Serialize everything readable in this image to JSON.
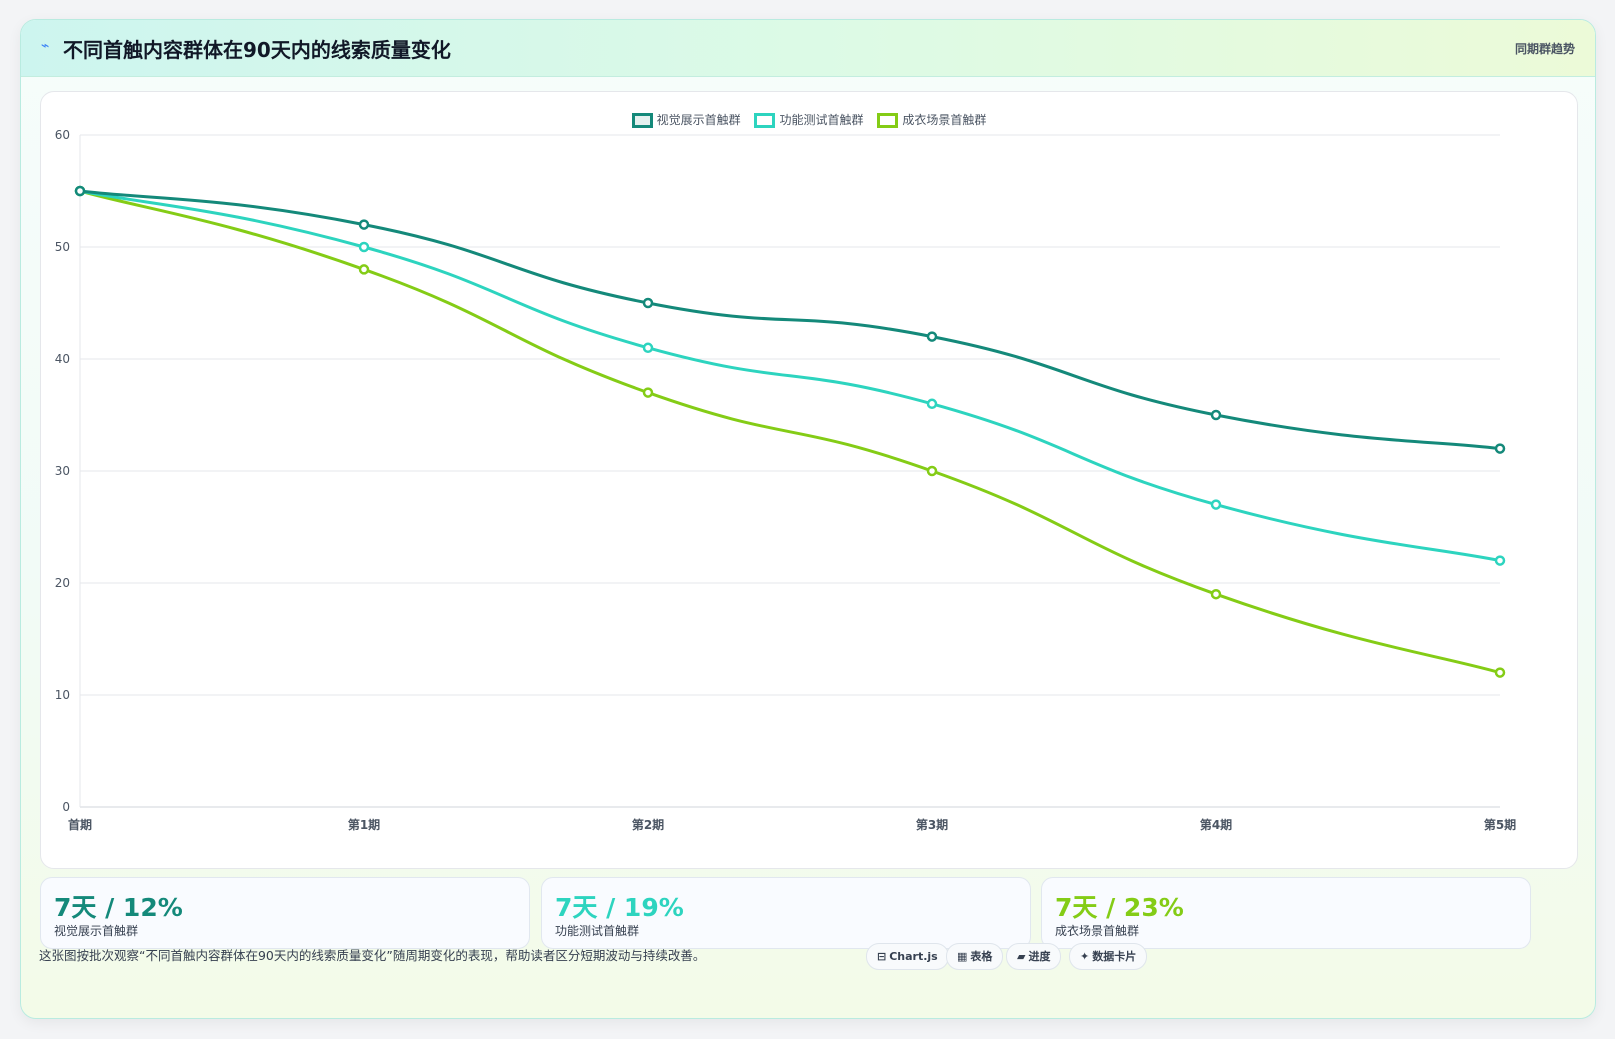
{
  "header": {
    "icon": "lightning-icon",
    "title": "不同首触内容群体在90天内的线索质量变化",
    "badge": "同期群趋势"
  },
  "chart_data": {
    "type": "line",
    "categories": [
      "首期",
      "第1期",
      "第2期",
      "第3期",
      "第4期",
      "第5期"
    ],
    "series": [
      {
        "name": "视觉展示首触群",
        "color": "#14897a",
        "values": [
          55,
          52,
          45,
          42,
          35,
          32
        ]
      },
      {
        "name": "功能测试首触群",
        "color": "#2dd4bf",
        "values": [
          55,
          50,
          41,
          36,
          27,
          22
        ]
      },
      {
        "name": "成衣场景首触群",
        "color": "#84cc16",
        "values": [
          55,
          48,
          37,
          30,
          19,
          12
        ]
      }
    ],
    "yticks": [
      0,
      10,
      20,
      30,
      40,
      50,
      60
    ],
    "ylim": [
      0,
      60
    ],
    "grid": true,
    "legend_position": "top-center",
    "curve": "smooth"
  },
  "stats": [
    {
      "value": "7天 / 12%",
      "label": "视觉展示首触群",
      "color": "#14897a"
    },
    {
      "value": "7天 / 19%",
      "label": "功能测试首触群",
      "color": "#2dd4bf"
    },
    {
      "value": "7天 / 23%",
      "label": "成衣场景首触群",
      "color": "#84cc16"
    }
  ],
  "footer": {
    "text": "这张图按批次观察“不同首触内容群体在90天内的线索质量变化”随周期变化的表现，帮助读者区分短期波动与持续改善。",
    "chips": [
      {
        "icon": "chart-icon",
        "glyph": "⊟",
        "label": "Chart.js"
      },
      {
        "icon": "table-icon",
        "glyph": "▦",
        "label": "表格"
      },
      {
        "icon": "progress-icon",
        "glyph": "▰",
        "label": "进度"
      },
      {
        "icon": "sparkle-icon",
        "glyph": "✦",
        "label": "数据卡片"
      }
    ]
  }
}
